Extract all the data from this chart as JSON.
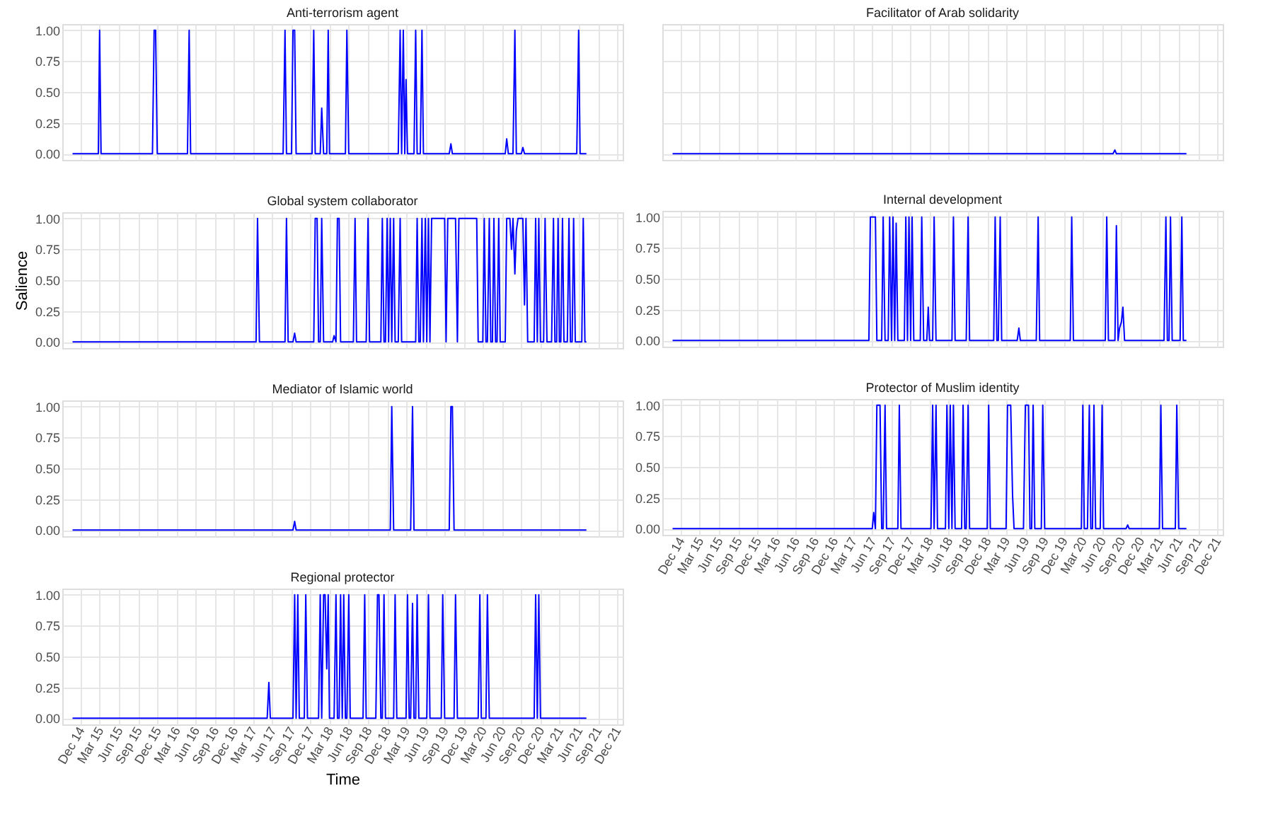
{
  "chart_data": [
    {
      "type": "line",
      "title": "Anti-terrorism agent",
      "tick_labels": "y",
      "grid": true,
      "xlim": [
        "2014-09-04",
        "2021-12-28"
      ],
      "ylim": [
        -0.05,
        1.05
      ],
      "yticks": [
        {
          "value": 0,
          "label": "0.00"
        },
        {
          "value": 0.25,
          "label": "0.25"
        },
        {
          "value": 0.5,
          "label": "0.50"
        },
        {
          "value": 0.75,
          "label": "0.75"
        },
        {
          "value": 1,
          "label": "1.00"
        }
      ],
      "xticks": [
        {
          "value": "2014-12-01",
          "label": null
        },
        {
          "value": "2015-03-01",
          "label": null
        },
        {
          "value": "2015-06-01",
          "label": null
        },
        {
          "value": "2015-09-01",
          "label": null
        },
        {
          "value": "2015-12-01",
          "label": null
        },
        {
          "value": "2016-03-01",
          "label": null
        },
        {
          "value": "2016-06-01",
          "label": null
        },
        {
          "value": "2016-09-01",
          "label": null
        },
        {
          "value": "2016-12-01",
          "label": null
        },
        {
          "value": "2017-03-01",
          "label": null
        },
        {
          "value": "2017-06-01",
          "label": null
        },
        {
          "value": "2017-09-01",
          "label": null
        },
        {
          "value": "2017-12-01",
          "label": null
        },
        {
          "value": "2018-03-01",
          "label": null
        },
        {
          "value": "2018-06-01",
          "label": null
        },
        {
          "value": "2018-09-01",
          "label": null
        },
        {
          "value": "2018-12-01",
          "label": null
        },
        {
          "value": "2019-03-01",
          "label": null
        },
        {
          "value": "2019-06-01",
          "label": null
        },
        {
          "value": "2019-09-01",
          "label": null
        },
        {
          "value": "2019-12-01",
          "label": null
        },
        {
          "value": "2020-03-01",
          "label": null
        },
        {
          "value": "2020-06-01",
          "label": null
        },
        {
          "value": "2020-09-01",
          "label": null
        },
        {
          "value": "2020-12-01",
          "label": null
        },
        {
          "value": "2021-03-01",
          "label": null
        },
        {
          "value": "2021-06-01",
          "label": null
        },
        {
          "value": "2021-09-01",
          "label": null
        },
        {
          "value": "2021-12-01",
          "label": null
        }
      ],
      "series": [
        {
          "color": "#0000ff",
          "x": [
            "2014-10-23",
            "2015-02-23",
            "2015-03-01",
            "2015-03-08",
            "2015-11-08",
            "2015-11-16",
            "2015-11-23",
            "2015-12-01",
            "2016-04-23",
            "2016-05-01",
            "2016-05-08",
            "2017-07-23",
            "2017-08-01",
            "2017-08-08",
            "2017-09-01",
            "2017-09-08",
            "2017-09-16",
            "2017-09-23",
            "2017-12-08",
            "2017-12-16",
            "2017-12-23",
            "2018-01-16",
            "2018-01-23",
            "2018-02-01",
            "2018-02-16",
            "2018-02-23",
            "2018-03-01",
            "2018-05-16",
            "2018-05-23",
            "2018-06-01",
            "2019-01-23",
            "2019-02-01",
            "2019-02-08",
            "2019-02-16",
            "2019-02-23",
            "2019-03-01",
            "2019-03-08",
            "2019-04-08",
            "2019-04-16",
            "2019-04-23",
            "2019-05-08",
            "2019-05-16",
            "2019-05-23",
            "2019-09-23",
            "2019-10-01",
            "2019-10-08",
            "2020-06-16",
            "2020-06-23",
            "2020-07-01",
            "2020-07-23",
            "2020-08-01",
            "2020-08-08",
            "2020-09-01",
            "2020-09-08",
            "2020-09-16",
            "2021-05-23",
            "2021-06-01",
            "2021-06-08",
            "2021-07-08"
          ],
          "values": [
            0,
            0,
            1,
            0,
            0,
            1,
            1,
            0,
            0,
            1,
            0,
            0,
            1,
            0,
            0,
            1,
            1,
            0,
            0,
            1,
            0,
            0,
            0.37,
            0,
            0,
            1,
            0,
            0,
            1,
            0,
            0,
            1,
            0,
            1,
            0,
            0.6,
            0,
            0,
            1,
            0,
            0,
            1,
            0,
            0,
            0.08,
            0,
            0,
            0.12,
            0,
            0,
            1,
            0,
            0,
            0.05,
            0,
            0,
            1,
            0,
            0
          ]
        }
      ]
    },
    {
      "type": "line",
      "title": "Facilitator of Arab solidarity",
      "tick_labels": false,
      "grid": true,
      "xlim": [
        "2014-09-04",
        "2021-12-28"
      ],
      "ylim": [
        -0.05,
        1.05
      ],
      "yticks": [
        {
          "value": 0,
          "label": null
        },
        {
          "value": 0.25,
          "label": null
        },
        {
          "value": 0.5,
          "label": null
        },
        {
          "value": 0.75,
          "label": null
        },
        {
          "value": 1,
          "label": null
        }
      ],
      "xticks": [
        {
          "value": "2014-12-01",
          "label": null
        },
        {
          "value": "2015-03-01",
          "label": null
        },
        {
          "value": "2015-06-01",
          "label": null
        },
        {
          "value": "2015-09-01",
          "label": null
        },
        {
          "value": "2015-12-01",
          "label": null
        },
        {
          "value": "2016-03-01",
          "label": null
        },
        {
          "value": "2016-06-01",
          "label": null
        },
        {
          "value": "2016-09-01",
          "label": null
        },
        {
          "value": "2016-12-01",
          "label": null
        },
        {
          "value": "2017-03-01",
          "label": null
        },
        {
          "value": "2017-06-01",
          "label": null
        },
        {
          "value": "2017-09-01",
          "label": null
        },
        {
          "value": "2017-12-01",
          "label": null
        },
        {
          "value": "2018-03-01",
          "label": null
        },
        {
          "value": "2018-06-01",
          "label": null
        },
        {
          "value": "2018-09-01",
          "label": null
        },
        {
          "value": "2018-12-01",
          "label": null
        },
        {
          "value": "2019-03-01",
          "label": null
        },
        {
          "value": "2019-06-01",
          "label": null
        },
        {
          "value": "2019-09-01",
          "label": null
        },
        {
          "value": "2019-12-01",
          "label": null
        },
        {
          "value": "2020-03-01",
          "label": null
        },
        {
          "value": "2020-06-01",
          "label": null
        },
        {
          "value": "2020-09-01",
          "label": null
        },
        {
          "value": "2020-12-01",
          "label": null
        },
        {
          "value": "2021-03-01",
          "label": null
        },
        {
          "value": "2021-06-01",
          "label": null
        },
        {
          "value": "2021-09-01",
          "label": null
        },
        {
          "value": "2021-12-01",
          "label": null
        }
      ],
      "series": [
        {
          "color": "#0000ff",
          "x": [
            "2014-10-23",
            "2020-07-23",
            "2020-08-01",
            "2020-08-08",
            "2021-07-08"
          ],
          "values": [
            0,
            0,
            0.03,
            0,
            0
          ]
        }
      ]
    },
    {
      "type": "line",
      "title": "Global system collaborator",
      "ylabel": "Salience",
      "tick_labels": "y",
      "grid": true,
      "xlim": [
        "2014-09-04",
        "2021-12-28"
      ],
      "ylim": [
        -0.05,
        1.05
      ],
      "yticks": [
        {
          "value": 0,
          "label": "0.00"
        },
        {
          "value": 0.25,
          "label": "0.25"
        },
        {
          "value": 0.5,
          "label": "0.50"
        },
        {
          "value": 0.75,
          "label": "0.75"
        },
        {
          "value": 1,
          "label": "1.00"
        }
      ],
      "xticks": [
        {
          "value": "2014-12-01",
          "label": null
        },
        {
          "value": "2015-03-01",
          "label": null
        },
        {
          "value": "2015-06-01",
          "label": null
        },
        {
          "value": "2015-09-01",
          "label": null
        },
        {
          "value": "2015-12-01",
          "label": null
        },
        {
          "value": "2016-03-01",
          "label": null
        },
        {
          "value": "2016-06-01",
          "label": null
        },
        {
          "value": "2016-09-01",
          "label": null
        },
        {
          "value": "2016-12-01",
          "label": null
        },
        {
          "value": "2017-03-01",
          "label": null
        },
        {
          "value": "2017-06-01",
          "label": null
        },
        {
          "value": "2017-09-01",
          "label": null
        },
        {
          "value": "2017-12-01",
          "label": null
        },
        {
          "value": "2018-03-01",
          "label": null
        },
        {
          "value": "2018-06-01",
          "label": null
        },
        {
          "value": "2018-09-01",
          "label": null
        },
        {
          "value": "2018-12-01",
          "label": null
        },
        {
          "value": "2019-03-01",
          "label": null
        },
        {
          "value": "2019-06-01",
          "label": null
        },
        {
          "value": "2019-09-01",
          "label": null
        },
        {
          "value": "2019-12-01",
          "label": null
        },
        {
          "value": "2020-03-01",
          "label": null
        },
        {
          "value": "2020-06-01",
          "label": null
        },
        {
          "value": "2020-09-01",
          "label": null
        },
        {
          "value": "2020-12-01",
          "label": null
        },
        {
          "value": "2021-03-01",
          "label": null
        },
        {
          "value": "2021-06-01",
          "label": null
        },
        {
          "value": "2021-09-01",
          "label": null
        },
        {
          "value": "2021-12-01",
          "label": null
        }
      ],
      "series": [
        {
          "color": "#0000ff",
          "x": [
            "2014-10-23",
            "2017-03-16",
            "2017-03-23",
            "2017-04-01",
            "2017-08-01",
            "2017-08-08",
            "2017-08-16",
            "2017-09-08",
            "2017-09-16",
            "2017-09-23",
            "2017-12-16",
            "2017-12-23",
            "2018-01-01",
            "2018-01-08",
            "2018-01-16",
            "2018-01-23",
            "2018-02-01",
            "2018-03-16",
            "2018-03-23",
            "2018-04-01",
            "2018-04-08",
            "2018-04-16",
            "2018-04-23",
            "2018-06-23",
            "2018-07-01",
            "2018-07-08",
            "2018-08-23",
            "2018-09-01",
            "2018-09-08",
            "2018-11-01",
            "2018-11-08",
            "2018-11-16",
            "2018-11-23",
            "2018-12-01",
            "2018-12-08",
            "2018-12-16",
            "2018-12-23",
            "2019-01-01",
            "2019-01-08",
            "2019-01-23",
            "2019-02-01",
            "2019-02-08",
            "2019-04-16",
            "2019-04-23",
            "2019-05-01",
            "2019-05-08",
            "2019-05-16",
            "2019-05-23",
            "2019-06-01",
            "2019-06-08",
            "2019-06-16",
            "2019-06-23",
            "2019-07-01",
            "2019-09-01",
            "2019-09-08",
            "2019-09-16",
            "2019-10-23",
            "2019-11-01",
            "2019-11-08",
            "2020-02-01",
            "2020-02-08",
            "2020-03-01",
            "2020-03-08",
            "2020-03-16",
            "2020-03-23",
            "2020-04-01",
            "2020-04-08",
            "2020-04-16",
            "2020-04-23",
            "2020-05-01",
            "2020-05-08",
            "2020-05-16",
            "2020-05-23",
            "2020-06-16",
            "2020-06-23",
            "2020-07-01",
            "2020-07-08",
            "2020-07-16",
            "2020-07-23",
            "2020-08-01",
            "2020-08-08",
            "2020-08-16",
            "2020-09-08",
            "2020-09-16",
            "2020-09-23",
            "2020-10-01",
            "2020-11-01",
            "2020-11-08",
            "2020-11-16",
            "2020-11-23",
            "2020-12-01",
            "2020-12-16",
            "2020-12-23",
            "2021-01-01",
            "2021-01-23",
            "2021-02-01",
            "2021-02-08",
            "2021-02-16",
            "2021-02-23",
            "2021-03-01",
            "2021-03-08",
            "2021-03-16",
            "2021-03-23",
            "2021-04-08",
            "2021-04-16",
            "2021-04-23",
            "2021-05-01",
            "2021-05-08",
            "2021-05-16",
            "2021-06-16",
            "2021-06-23",
            "2021-07-01",
            "2021-07-08"
          ],
          "values": [
            0,
            0,
            1,
            0,
            0,
            1,
            0,
            0,
            0.07,
            0,
            0,
            1,
            1,
            0,
            0,
            1,
            0,
            0,
            0.05,
            0,
            1,
            1,
            0,
            0,
            1,
            0,
            0,
            1,
            0,
            0,
            1,
            0,
            0,
            1,
            0,
            1,
            0,
            1,
            0,
            0,
            1,
            0,
            0,
            1,
            0,
            0,
            1,
            0,
            1,
            0,
            1,
            0,
            1,
            1,
            0,
            1,
            1,
            0,
            1,
            1,
            0,
            0,
            1,
            0,
            0,
            1,
            0,
            0,
            1,
            0,
            0,
            1,
            0,
            0,
            1,
            1,
            1,
            0.75,
            1,
            0.55,
            0.9,
            1,
            1,
            0.3,
            1,
            0,
            0,
            1,
            0,
            1,
            0,
            0,
            1,
            0,
            0,
            1,
            0,
            0,
            1,
            0,
            0,
            1,
            0,
            0,
            1,
            0,
            0,
            1,
            0,
            0,
            1,
            0,
            0
          ]
        }
      ]
    },
    {
      "type": "line",
      "title": "Internal development",
      "tick_labels": "y",
      "grid": true,
      "xlim": [
        "2014-09-04",
        "2021-12-28"
      ],
      "ylim": [
        -0.05,
        1.05
      ],
      "yticks": [
        {
          "value": 0,
          "label": "0.00"
        },
        {
          "value": 0.25,
          "label": "0.25"
        },
        {
          "value": 0.5,
          "label": "0.50"
        },
        {
          "value": 0.75,
          "label": "0.75"
        },
        {
          "value": 1,
          "label": "1.00"
        }
      ],
      "xticks": [
        {
          "value": "2014-12-01",
          "label": null
        },
        {
          "value": "2015-03-01",
          "label": null
        },
        {
          "value": "2015-06-01",
          "label": null
        },
        {
          "value": "2015-09-01",
          "label": null
        },
        {
          "value": "2015-12-01",
          "label": null
        },
        {
          "value": "2016-03-01",
          "label": null
        },
        {
          "value": "2016-06-01",
          "label": null
        },
        {
          "value": "2016-09-01",
          "label": null
        },
        {
          "value": "2016-12-01",
          "label": null
        },
        {
          "value": "2017-03-01",
          "label": null
        },
        {
          "value": "2017-06-01",
          "label": null
        },
        {
          "value": "2017-09-01",
          "label": null
        },
        {
          "value": "2017-12-01",
          "label": null
        },
        {
          "value": "2018-03-01",
          "label": null
        },
        {
          "value": "2018-06-01",
          "label": null
        },
        {
          "value": "2018-09-01",
          "label": null
        },
        {
          "value": "2018-12-01",
          "label": null
        },
        {
          "value": "2019-03-01",
          "label": null
        },
        {
          "value": "2019-06-01",
          "label": null
        },
        {
          "value": "2019-09-01",
          "label": null
        },
        {
          "value": "2019-12-01",
          "label": null
        },
        {
          "value": "2020-03-01",
          "label": null
        },
        {
          "value": "2020-06-01",
          "label": null
        },
        {
          "value": "2020-09-01",
          "label": null
        },
        {
          "value": "2020-12-01",
          "label": null
        },
        {
          "value": "2021-03-01",
          "label": null
        },
        {
          "value": "2021-06-01",
          "label": null
        },
        {
          "value": "2021-09-01",
          "label": null
        },
        {
          "value": "2021-12-01",
          "label": null
        }
      ],
      "series": [
        {
          "color": "#0000ff",
          "x": [
            "2014-10-23",
            "2017-05-16",
            "2017-05-23",
            "2017-06-16",
            "2017-06-23",
            "2017-07-16",
            "2017-07-23",
            "2017-08-01",
            "2017-08-16",
            "2017-08-23",
            "2017-09-01",
            "2017-09-08",
            "2017-09-16",
            "2017-09-23",
            "2017-10-01",
            "2017-11-01",
            "2017-11-08",
            "2017-11-16",
            "2017-11-23",
            "2017-12-01",
            "2017-12-08",
            "2017-12-16",
            "2018-01-16",
            "2018-01-23",
            "2018-02-01",
            "2018-02-16",
            "2018-02-23",
            "2018-03-01",
            "2018-03-16",
            "2018-03-23",
            "2018-04-01",
            "2018-06-16",
            "2018-06-23",
            "2018-07-01",
            "2018-08-23",
            "2018-09-01",
            "2018-09-08",
            "2019-01-01",
            "2019-01-08",
            "2019-01-16",
            "2019-01-23",
            "2019-02-01",
            "2019-02-08",
            "2019-04-23",
            "2019-05-01",
            "2019-05-08",
            "2019-07-23",
            "2019-08-01",
            "2019-08-08",
            "2020-01-01",
            "2020-01-08",
            "2020-01-16",
            "2020-06-16",
            "2020-06-23",
            "2020-07-01",
            "2020-08-01",
            "2020-08-08",
            "2020-08-16",
            "2020-08-23",
            "2020-09-01",
            "2020-09-08",
            "2020-09-16",
            "2021-03-23",
            "2021-04-01",
            "2021-04-08",
            "2021-04-16",
            "2021-04-23",
            "2021-05-01",
            "2021-06-08",
            "2021-06-16",
            "2021-06-23",
            "2021-07-08"
          ],
          "values": [
            0,
            0,
            1,
            1,
            0,
            0,
            1,
            0,
            0,
            1,
            0,
            1,
            0,
            0.95,
            0,
            0,
            1,
            0,
            1,
            0,
            1,
            0,
            0,
            1,
            0,
            0,
            0.27,
            0,
            0,
            1,
            0,
            0,
            1,
            0,
            0,
            1,
            0,
            0,
            1,
            0,
            0,
            1,
            0,
            0,
            0.1,
            0,
            0,
            1,
            0,
            0,
            1,
            0,
            0,
            1,
            0,
            0,
            0.93,
            0,
            0.1,
            0.15,
            0.27,
            0,
            0,
            1,
            0,
            0,
            1,
            0,
            0,
            1,
            0,
            0
          ]
        }
      ]
    },
    {
      "type": "line",
      "title": "Mediator of Islamic world",
      "tick_labels": "y",
      "grid": true,
      "xlim": [
        "2014-09-04",
        "2021-12-28"
      ],
      "ylim": [
        -0.05,
        1.05
      ],
      "yticks": [
        {
          "value": 0,
          "label": "0.00"
        },
        {
          "value": 0.25,
          "label": "0.25"
        },
        {
          "value": 0.5,
          "label": "0.50"
        },
        {
          "value": 0.75,
          "label": "0.75"
        },
        {
          "value": 1,
          "label": "1.00"
        }
      ],
      "xticks": [
        {
          "value": "2014-12-01",
          "label": null
        },
        {
          "value": "2015-03-01",
          "label": null
        },
        {
          "value": "2015-06-01",
          "label": null
        },
        {
          "value": "2015-09-01",
          "label": null
        },
        {
          "value": "2015-12-01",
          "label": null
        },
        {
          "value": "2016-03-01",
          "label": null
        },
        {
          "value": "2016-06-01",
          "label": null
        },
        {
          "value": "2016-09-01",
          "label": null
        },
        {
          "value": "2016-12-01",
          "label": null
        },
        {
          "value": "2017-03-01",
          "label": null
        },
        {
          "value": "2017-06-01",
          "label": null
        },
        {
          "value": "2017-09-01",
          "label": null
        },
        {
          "value": "2017-12-01",
          "label": null
        },
        {
          "value": "2018-03-01",
          "label": null
        },
        {
          "value": "2018-06-01",
          "label": null
        },
        {
          "value": "2018-09-01",
          "label": null
        },
        {
          "value": "2018-12-01",
          "label": null
        },
        {
          "value": "2019-03-01",
          "label": null
        },
        {
          "value": "2019-06-01",
          "label": null
        },
        {
          "value": "2019-09-01",
          "label": null
        },
        {
          "value": "2019-12-01",
          "label": null
        },
        {
          "value": "2020-03-01",
          "label": null
        },
        {
          "value": "2020-06-01",
          "label": null
        },
        {
          "value": "2020-09-01",
          "label": null
        },
        {
          "value": "2020-12-01",
          "label": null
        },
        {
          "value": "2021-03-01",
          "label": null
        },
        {
          "value": "2021-06-01",
          "label": null
        },
        {
          "value": "2021-09-01",
          "label": null
        },
        {
          "value": "2021-12-01",
          "label": null
        }
      ],
      "series": [
        {
          "color": "#0000ff",
          "x": [
            "2014-10-23",
            "2017-09-08",
            "2017-09-16",
            "2017-09-23",
            "2018-12-16",
            "2018-12-23",
            "2019-01-01",
            "2019-03-23",
            "2019-04-01",
            "2019-04-08",
            "2019-09-23",
            "2019-10-01",
            "2019-10-08",
            "2019-10-16",
            "2021-07-08"
          ],
          "values": [
            0,
            0,
            0.07,
            0,
            0,
            1,
            0,
            0,
            1,
            0,
            0,
            1,
            1,
            0,
            0
          ]
        }
      ]
    },
    {
      "type": "line",
      "title": "Protector of Muslim identity",
      "grid": true,
      "xlim": [
        "2014-09-04",
        "2021-12-28"
      ],
      "ylim": [
        -0.05,
        1.05
      ],
      "yticks": [
        {
          "value": 0,
          "label": "0.00"
        },
        {
          "value": 0.25,
          "label": "0.25"
        },
        {
          "value": 0.5,
          "label": "0.50"
        },
        {
          "value": 0.75,
          "label": "0.75"
        },
        {
          "value": 1,
          "label": "1.00"
        }
      ],
      "xticks": [
        {
          "value": "2014-12-01",
          "label": "Dec 14"
        },
        {
          "value": "2015-03-01",
          "label": "Mar 15"
        },
        {
          "value": "2015-06-01",
          "label": "Jun 15"
        },
        {
          "value": "2015-09-01",
          "label": "Sep 15"
        },
        {
          "value": "2015-12-01",
          "label": "Dec 15"
        },
        {
          "value": "2016-03-01",
          "label": "Mar 16"
        },
        {
          "value": "2016-06-01",
          "label": "Jun 16"
        },
        {
          "value": "2016-09-01",
          "label": "Sep 16"
        },
        {
          "value": "2016-12-01",
          "label": "Dec 16"
        },
        {
          "value": "2017-03-01",
          "label": "Mar 17"
        },
        {
          "value": "2017-06-01",
          "label": "Jun 17"
        },
        {
          "value": "2017-09-01",
          "label": "Sep 17"
        },
        {
          "value": "2017-12-01",
          "label": "Dec 17"
        },
        {
          "value": "2018-03-01",
          "label": "Mar 18"
        },
        {
          "value": "2018-06-01",
          "label": "Jun 18"
        },
        {
          "value": "2018-09-01",
          "label": "Sep 18"
        },
        {
          "value": "2018-12-01",
          "label": "Dec 18"
        },
        {
          "value": "2019-03-01",
          "label": "Mar 19"
        },
        {
          "value": "2019-06-01",
          "label": "Jun 19"
        },
        {
          "value": "2019-09-01",
          "label": "Sep 19"
        },
        {
          "value": "2019-12-01",
          "label": "Dec 19"
        },
        {
          "value": "2020-03-01",
          "label": "Mar 20"
        },
        {
          "value": "2020-06-01",
          "label": "Jun 20"
        },
        {
          "value": "2020-09-01",
          "label": "Sep 20"
        },
        {
          "value": "2020-12-01",
          "label": "Dec 20"
        },
        {
          "value": "2021-03-01",
          "label": "Mar 21"
        },
        {
          "value": "2021-06-01",
          "label": "Jun 21"
        },
        {
          "value": "2021-09-01",
          "label": "Sep 21"
        },
        {
          "value": "2021-12-01",
          "label": "Dec 21"
        }
      ],
      "series": [
        {
          "color": "#0000ff",
          "x": [
            "2014-10-23",
            "2017-06-01",
            "2017-06-08",
            "2017-06-16",
            "2017-06-23",
            "2017-07-08",
            "2017-07-16",
            "2017-07-23",
            "2017-08-01",
            "2017-08-08",
            "2017-10-01",
            "2017-10-08",
            "2017-10-16",
            "2018-03-08",
            "2018-03-16",
            "2018-03-23",
            "2018-04-01",
            "2018-04-08",
            "2018-05-16",
            "2018-05-23",
            "2018-06-01",
            "2018-06-08",
            "2018-06-16",
            "2018-06-23",
            "2018-07-01",
            "2018-08-01",
            "2018-08-08",
            "2018-08-16",
            "2018-08-23",
            "2018-09-01",
            "2018-09-08",
            "2018-12-01",
            "2018-12-08",
            "2018-12-16",
            "2019-03-01",
            "2019-03-08",
            "2019-03-23",
            "2019-04-01",
            "2019-04-08",
            "2019-05-23",
            "2019-06-01",
            "2019-06-16",
            "2019-06-23",
            "2019-07-01",
            "2019-07-08",
            "2019-07-16",
            "2019-08-16",
            "2019-08-23",
            "2019-09-01",
            "2020-02-23",
            "2020-03-01",
            "2020-03-08",
            "2020-03-23",
            "2020-04-01",
            "2020-04-08",
            "2020-04-16",
            "2020-04-23",
            "2020-05-01",
            "2020-05-23",
            "2020-06-01",
            "2020-06-08",
            "2020-09-23",
            "2020-10-01",
            "2020-10-08",
            "2021-03-01",
            "2021-03-08",
            "2021-03-16",
            "2021-05-16",
            "2021-05-23",
            "2021-06-01",
            "2021-07-08"
          ],
          "values": [
            0,
            0,
            0.13,
            0,
            1,
            1,
            0,
            0,
            1,
            0,
            0,
            1,
            0,
            0,
            1,
            0,
            1,
            0,
            0,
            1,
            0,
            1,
            0,
            1,
            0,
            0,
            1,
            0,
            0,
            1,
            0,
            0,
            1,
            0,
            0,
            1,
            1,
            0.27,
            0,
            0,
            1,
            1,
            0,
            0,
            1,
            0,
            0,
            1,
            0,
            0,
            1,
            0,
            0,
            1,
            0,
            0,
            1,
            0,
            0,
            1,
            0,
            0,
            0.03,
            0,
            0,
            1,
            0,
            0,
            1,
            0,
            0
          ]
        }
      ]
    },
    {
      "type": "line",
      "title": "Regional protector",
      "xlabel": "Time",
      "grid": true,
      "xlim": [
        "2014-09-04",
        "2021-12-28"
      ],
      "ylim": [
        -0.05,
        1.05
      ],
      "yticks": [
        {
          "value": 0,
          "label": "0.00"
        },
        {
          "value": 0.25,
          "label": "0.25"
        },
        {
          "value": 0.5,
          "label": "0.50"
        },
        {
          "value": 0.75,
          "label": "0.75"
        },
        {
          "value": 1,
          "label": "1.00"
        }
      ],
      "xticks": [
        {
          "value": "2014-12-01",
          "label": "Dec 14"
        },
        {
          "value": "2015-03-01",
          "label": "Mar 15"
        },
        {
          "value": "2015-06-01",
          "label": "Jun 15"
        },
        {
          "value": "2015-09-01",
          "label": "Sep 15"
        },
        {
          "value": "2015-12-01",
          "label": "Dec 15"
        },
        {
          "value": "2016-03-01",
          "label": "Mar 16"
        },
        {
          "value": "2016-06-01",
          "label": "Jun 16"
        },
        {
          "value": "2016-09-01",
          "label": "Sep 16"
        },
        {
          "value": "2016-12-01",
          "label": "Dec 16"
        },
        {
          "value": "2017-03-01",
          "label": "Mar 17"
        },
        {
          "value": "2017-06-01",
          "label": "Jun 17"
        },
        {
          "value": "2017-09-01",
          "label": "Sep 17"
        },
        {
          "value": "2017-12-01",
          "label": "Dec 17"
        },
        {
          "value": "2018-03-01",
          "label": "Mar 18"
        },
        {
          "value": "2018-06-01",
          "label": "Jun 18"
        },
        {
          "value": "2018-09-01",
          "label": "Sep 18"
        },
        {
          "value": "2018-12-01",
          "label": "Dec 18"
        },
        {
          "value": "2019-03-01",
          "label": "Mar 19"
        },
        {
          "value": "2019-06-01",
          "label": "Jun 19"
        },
        {
          "value": "2019-09-01",
          "label": "Sep 19"
        },
        {
          "value": "2019-12-01",
          "label": "Dec 19"
        },
        {
          "value": "2020-03-01",
          "label": "Mar 20"
        },
        {
          "value": "2020-06-01",
          "label": "Jun 20"
        },
        {
          "value": "2020-09-01",
          "label": "Sep 20"
        },
        {
          "value": "2020-12-01",
          "label": "Dec 20"
        },
        {
          "value": "2021-03-01",
          "label": "Mar 21"
        },
        {
          "value": "2021-06-01",
          "label": "Jun 21"
        },
        {
          "value": "2021-09-01",
          "label": "Sep 21"
        },
        {
          "value": "2021-12-01",
          "label": "Dec 21"
        }
      ],
      "series": [
        {
          "color": "#0000ff",
          "x": [
            "2014-10-23",
            "2017-05-08",
            "2017-05-16",
            "2017-05-23",
            "2017-09-08",
            "2017-09-16",
            "2017-09-23",
            "2017-10-01",
            "2017-10-08",
            "2017-11-01",
            "2017-11-08",
            "2017-11-16",
            "2018-01-08",
            "2018-01-16",
            "2018-01-23",
            "2018-02-01",
            "2018-02-08",
            "2018-02-16",
            "2018-02-23",
            "2018-03-01",
            "2018-03-23",
            "2018-04-01",
            "2018-04-08",
            "2018-04-16",
            "2018-04-23",
            "2018-05-01",
            "2018-05-08",
            "2018-05-16",
            "2018-05-23",
            "2018-06-01",
            "2018-06-08",
            "2018-08-08",
            "2018-08-16",
            "2018-08-23",
            "2018-10-08",
            "2018-10-16",
            "2018-10-23",
            "2018-11-01",
            "2018-11-08",
            "2018-11-16",
            "2018-11-23",
            "2019-01-01",
            "2019-01-08",
            "2019-01-16",
            "2019-03-01",
            "2019-03-08",
            "2019-03-16",
            "2019-03-23",
            "2019-04-01",
            "2019-04-08",
            "2019-04-16",
            "2019-04-23",
            "2019-05-01",
            "2019-06-08",
            "2019-06-16",
            "2019-06-23",
            "2019-08-16",
            "2019-08-23",
            "2019-09-01",
            "2019-10-16",
            "2019-10-23",
            "2019-11-01",
            "2020-02-08",
            "2020-02-16",
            "2020-02-23",
            "2020-03-16",
            "2020-03-23",
            "2020-04-01",
            "2020-11-01",
            "2020-11-08",
            "2020-11-16",
            "2020-11-23",
            "2020-12-01",
            "2021-07-08"
          ],
          "values": [
            0,
            0,
            0.29,
            0,
            0,
            1,
            0,
            1,
            0,
            0,
            1,
            0,
            0,
            1,
            0,
            1,
            1,
            0.4,
            1,
            0,
            0,
            1,
            0,
            0,
            1,
            0,
            1,
            0,
            0,
            1,
            0,
            0,
            1,
            0,
            0,
            1,
            1,
            0,
            0,
            1,
            0,
            0,
            1,
            0,
            0,
            1,
            0,
            0,
            0.93,
            0,
            0,
            1,
            0,
            0,
            1,
            0,
            0,
            1,
            0,
            0,
            1,
            0,
            0,
            1,
            0,
            0,
            1,
            0,
            0,
            1,
            0,
            1,
            0,
            0
          ]
        }
      ]
    }
  ]
}
